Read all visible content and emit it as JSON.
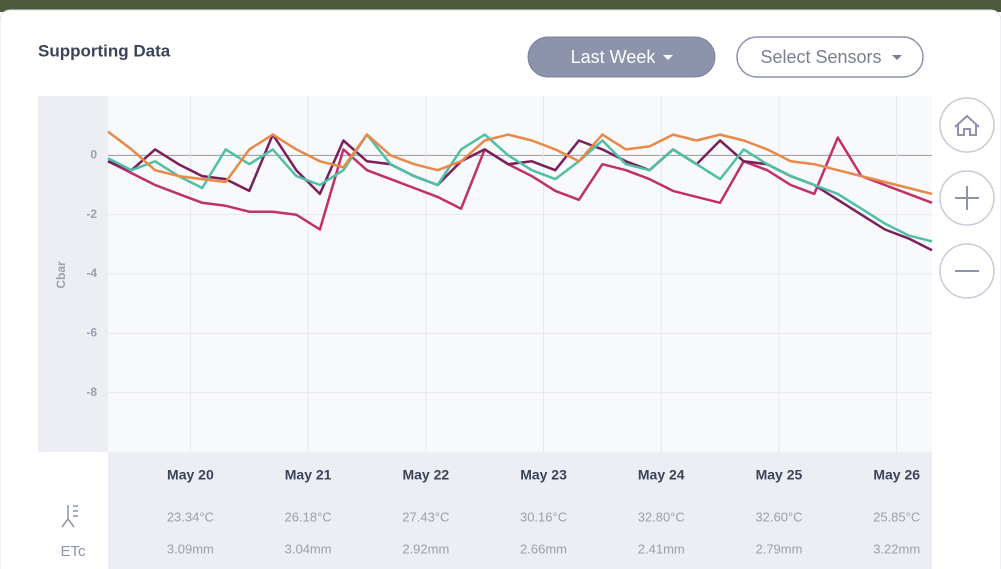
{
  "header": {
    "title": "Supporting Data",
    "range_button": "Last Week",
    "sensors_button": "Select Sensors"
  },
  "chart_data": {
    "type": "line",
    "y_label": "Cbar",
    "x": [
      19.3,
      19.5,
      19.7,
      19.9,
      20.1,
      20.3,
      20.5,
      20.7,
      20.9,
      21.1,
      21.3,
      21.5,
      21.7,
      21.9,
      22.1,
      22.3,
      22.5,
      22.7,
      22.9,
      23.1,
      23.3,
      23.5,
      23.7,
      23.9,
      24.1,
      24.3,
      24.5,
      24.7,
      24.9,
      25.1,
      25.3,
      25.5,
      25.7,
      25.9,
      26.1,
      26.3
    ],
    "xlim": [
      19.3,
      26.3
    ],
    "xticks": [
      {
        "value": 20,
        "label": "May 20"
      },
      {
        "value": 21,
        "label": "May 21"
      },
      {
        "value": 22,
        "label": "May 22"
      },
      {
        "value": 23,
        "label": "May 23"
      },
      {
        "value": 24,
        "label": "May 24"
      },
      {
        "value": 25,
        "label": "May 25"
      },
      {
        "value": 26,
        "label": "May 26"
      }
    ],
    "ylim": [
      -10,
      2
    ],
    "yticks": [
      0,
      -2,
      -4,
      -6,
      -8
    ],
    "grid": true,
    "series": [
      {
        "color": "#c0306a",
        "values": [
          -0.2,
          -0.6,
          -1.0,
          -1.3,
          -1.6,
          -1.7,
          -1.9,
          -1.9,
          -2.0,
          -2.5,
          0.2,
          -0.5,
          -0.8,
          -1.1,
          -1.4,
          -1.8,
          0.2,
          -0.3,
          -0.7,
          -1.2,
          -1.5,
          -0.3,
          -0.5,
          -0.8,
          -1.2,
          -1.4,
          -1.6,
          -0.2,
          -0.5,
          -1.0,
          -1.3,
          0.6,
          -0.7,
          -1.0,
          -1.3,
          -1.6
        ]
      },
      {
        "color": "#7a1f5c",
        "values": [
          -0.2,
          -0.5,
          0.2,
          -0.3,
          -0.7,
          -0.8,
          -1.2,
          0.7,
          -0.5,
          -1.3,
          0.5,
          -0.2,
          -0.3,
          -0.7,
          -1.0,
          -0.2,
          0.2,
          -0.3,
          -0.2,
          -0.5,
          0.5,
          0.2,
          -0.2,
          -0.5,
          0.2,
          -0.3,
          0.5,
          -0.2,
          -0.3,
          -0.7,
          -1.0,
          -1.5,
          -2.0,
          -2.5,
          -2.8,
          -3.2
        ]
      },
      {
        "color": "#4fbfa5",
        "values": [
          -0.1,
          -0.5,
          -0.2,
          -0.7,
          -1.1,
          0.2,
          -0.3,
          0.2,
          -0.7,
          -1.0,
          -0.5,
          0.7,
          -0.3,
          -0.7,
          -1.0,
          0.2,
          0.7,
          0,
          -0.5,
          -0.8,
          -0.2,
          0.5,
          -0.3,
          -0.5,
          0.2,
          -0.3,
          -0.8,
          0.2,
          -0.3,
          -0.7,
          -1.0,
          -1.3,
          -1.8,
          -2.3,
          -2.7,
          -2.9
        ]
      },
      {
        "color": "#e8894a",
        "values": [
          0.8,
          0.2,
          -0.5,
          -0.7,
          -0.8,
          -0.9,
          0.2,
          0.7,
          0.2,
          -0.2,
          -0.4,
          0.7,
          0,
          -0.3,
          -0.5,
          -0.2,
          0.5,
          0.7,
          0.5,
          0.2,
          -0.2,
          0.7,
          0.2,
          0.3,
          0.7,
          0.5,
          0.7,
          0.5,
          0.2,
          -0.2,
          -0.3,
          -0.5,
          -0.7,
          -0.9,
          -1.1,
          -1.3
        ]
      }
    ]
  },
  "weather": {
    "temperatures": [
      "23.34°C",
      "26.18°C",
      "27.43°C",
      "30.16°C",
      "32.80°C",
      "32.60°C",
      "25.85°C"
    ],
    "etc_label": "ETc",
    "etc": [
      "3.09mm",
      "3.04mm",
      "2.92mm",
      "2.66mm",
      "2.41mm",
      "2.79mm",
      "3.22mm"
    ]
  }
}
